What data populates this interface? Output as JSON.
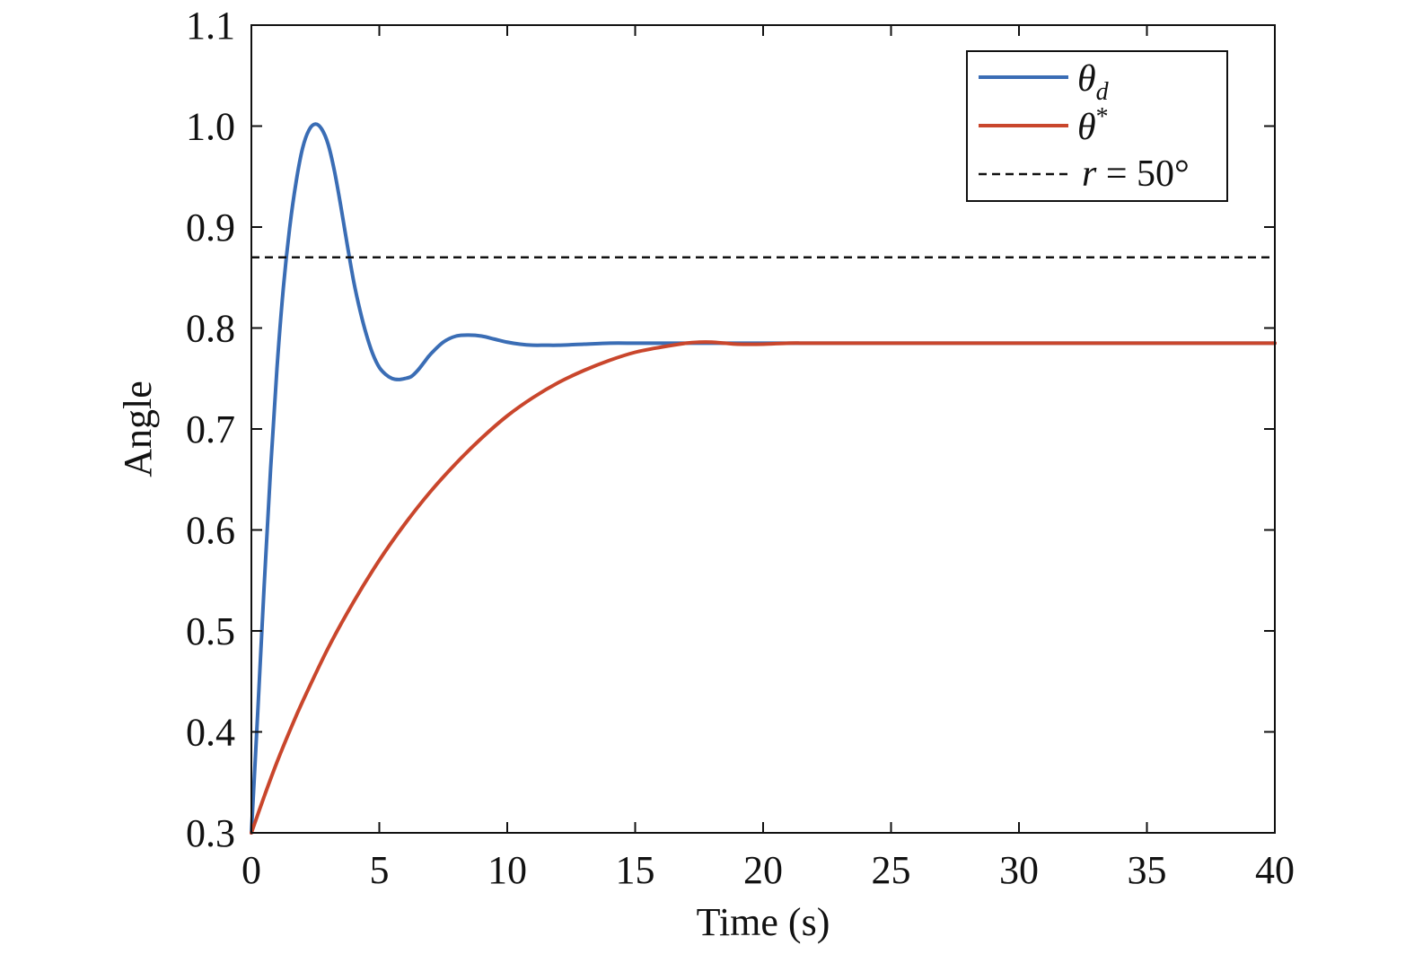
{
  "chart_data": {
    "type": "line",
    "title": "",
    "xlabel": "Time (s)",
    "ylabel": "Angle",
    "xlim": [
      0,
      40
    ],
    "ylim": [
      0.3,
      1.1
    ],
    "xticks": [
      0,
      5,
      10,
      15,
      20,
      25,
      30,
      35,
      40
    ],
    "xtick_labels": [
      "0",
      "5",
      "10",
      "15",
      "20",
      "25",
      "30",
      "35",
      "40"
    ],
    "yticks": [
      0.3,
      0.4,
      0.5,
      0.6,
      0.7,
      0.8,
      0.9,
      1.0,
      1.1
    ],
    "ytick_labels": [
      "0.3",
      "0.4",
      "0.5",
      "0.6",
      "0.7",
      "0.8",
      "0.9",
      "1.0",
      "1.1"
    ],
    "grid": false,
    "legend_position": "top-right",
    "series": [
      {
        "name": "θd",
        "legend_main": "θ",
        "legend_sub": "d",
        "color": "#3A6DB5",
        "style": "solid",
        "x": [
          0,
          0.25,
          0.5,
          0.75,
          1.0,
          1.25,
          1.5,
          1.75,
          2.0,
          2.25,
          2.5,
          2.75,
          3.0,
          3.25,
          3.5,
          3.75,
          4.0,
          4.25,
          4.5,
          4.75,
          5.0,
          5.25,
          5.5,
          5.75,
          6.0,
          6.25,
          6.5,
          6.75,
          7.0,
          7.5,
          8.0,
          8.5,
          9.0,
          9.5,
          10.0,
          10.5,
          11.0,
          11.5,
          12.0,
          13.0,
          14.0,
          15.0,
          16.0,
          18.0,
          20.0,
          25.0,
          30.0,
          35.0,
          40.0
        ],
        "y": [
          0.3,
          0.42,
          0.545,
          0.66,
          0.76,
          0.84,
          0.9,
          0.945,
          0.978,
          0.996,
          1.002,
          0.997,
          0.982,
          0.955,
          0.92,
          0.882,
          0.846,
          0.817,
          0.793,
          0.774,
          0.761,
          0.754,
          0.75,
          0.749,
          0.75,
          0.752,
          0.758,
          0.766,
          0.774,
          0.786,
          0.792,
          0.793,
          0.792,
          0.789,
          0.786,
          0.784,
          0.783,
          0.783,
          0.783,
          0.784,
          0.785,
          0.785,
          0.785,
          0.785,
          0.785,
          0.785,
          0.785,
          0.785,
          0.785
        ]
      },
      {
        "name": "θ*",
        "legend_main": "θ",
        "legend_sup": "*",
        "color": "#C9462C",
        "style": "solid",
        "x": [
          0,
          0.5,
          1,
          1.5,
          2,
          3,
          4,
          5,
          6,
          7,
          8,
          9,
          10,
          11,
          12,
          13,
          14,
          15,
          16,
          17,
          17.5,
          18,
          18.5,
          19,
          20,
          21,
          22,
          25,
          30,
          35,
          40
        ],
        "y": [
          0.3,
          0.336,
          0.37,
          0.401,
          0.43,
          0.483,
          0.529,
          0.57,
          0.606,
          0.638,
          0.666,
          0.691,
          0.713,
          0.731,
          0.746,
          0.758,
          0.768,
          0.776,
          0.781,
          0.785,
          0.786,
          0.786,
          0.785,
          0.784,
          0.784,
          0.785,
          0.785,
          0.785,
          0.785,
          0.785,
          0.785
        ]
      },
      {
        "name": "r = 50°",
        "legend_italic": "r",
        "legend_rest": " = 50°",
        "color": "#111111",
        "style": "dashed",
        "x": [
          0,
          40
        ],
        "y": [
          0.87,
          0.87
        ]
      }
    ]
  }
}
